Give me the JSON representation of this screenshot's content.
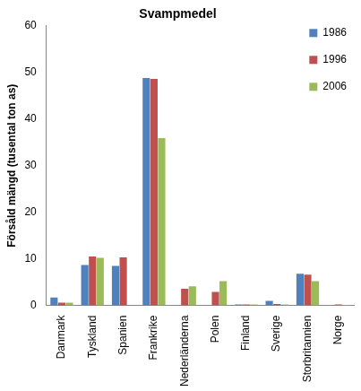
{
  "chart_data": {
    "type": "bar",
    "title": "Svampmedel",
    "y_label": "Försåld mängd (tusental ton as)",
    "categories": [
      "Danmark",
      "Tyskland",
      "Spanien",
      "Frankrike",
      "Nederländerna",
      "Polen",
      "Finland",
      "Sverige",
      "Storbritannien",
      "Norge"
    ],
    "series": [
      {
        "name": "1986",
        "color": "#4f81bd",
        "values": [
          1.7,
          8.7,
          8.5,
          48.8,
          null,
          null,
          0.2,
          1.0,
          6.8,
          null
        ]
      },
      {
        "name": "1996",
        "color": "#c0504d",
        "values": [
          0.6,
          10.5,
          10.3,
          48.6,
          3.6,
          2.9,
          0.2,
          0.3,
          6.6,
          0.2
        ]
      },
      {
        "name": "2006",
        "color": "#9bbb59",
        "values": [
          0.6,
          10.2,
          null,
          35.9,
          4.1,
          5.2,
          0.2,
          0.2,
          5.2,
          0.1
        ]
      }
    ],
    "ylim": [
      0,
      60
    ],
    "yticks": [
      0,
      10,
      20,
      30,
      40,
      50,
      60
    ],
    "grid": false,
    "legend": "upper right"
  }
}
